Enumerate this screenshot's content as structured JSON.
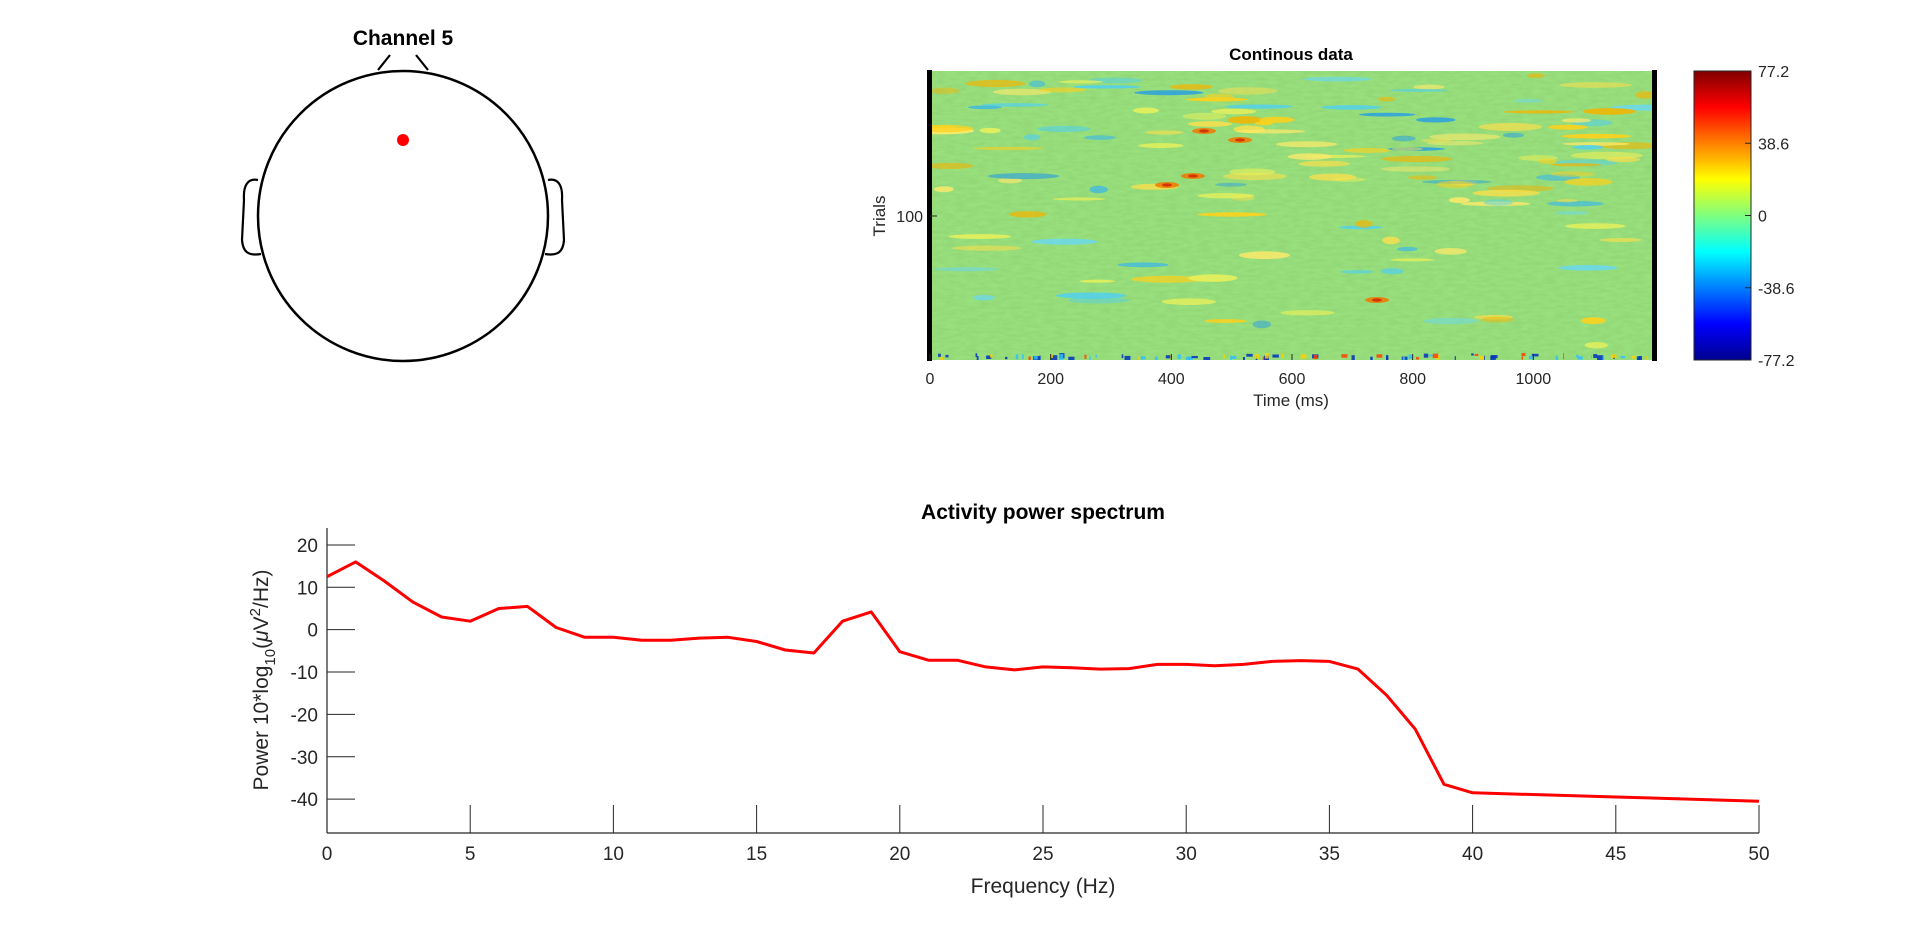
{
  "figure": {
    "background": "#ffffff"
  },
  "topoplot": {
    "title": "Channel 5",
    "electrode_color": "#ff0000",
    "head_color": "#000000"
  },
  "erpimage": {
    "title": "Continous data",
    "xlabel": "Time (ms)",
    "ylabel": "Trials",
    "x_ticks": [
      "0",
      "200",
      "400",
      "600",
      "800",
      "1000"
    ],
    "y_ticks": [
      "100"
    ],
    "colorbar": {
      "ticks": [
        "77.2",
        "38.6",
        "0",
        "-38.6",
        "-77.2"
      ],
      "max": 77.2,
      "min": -77.2,
      "colormap": "jet"
    }
  },
  "chart_data": [
    {
      "type": "line",
      "title": "Activity power spectrum",
      "xlabel": "Frequency (Hz)",
      "ylabel_parts": {
        "prefix": "Power 10*log",
        "sub": "10",
        "mid": "(",
        "mu": "μ",
        "v": "V",
        "sup": "2",
        "suffix": "/Hz)"
      },
      "xlim": [
        0,
        50
      ],
      "ylim": [
        -48,
        24
      ],
      "x_ticks": [
        "0",
        "5",
        "10",
        "15",
        "20",
        "25",
        "30",
        "35",
        "40",
        "45",
        "50"
      ],
      "y_ticks": [
        "20",
        "10",
        "0",
        "-10",
        "-20",
        "-30",
        "-40"
      ],
      "series": [
        {
          "color": "#ff0000",
          "x": [
            0,
            1,
            2,
            3,
            4,
            5,
            6,
            7,
            8,
            9,
            10,
            11,
            12,
            13,
            14,
            15,
            16,
            17,
            18,
            19,
            20,
            21,
            22,
            23,
            24,
            25,
            26,
            27,
            28,
            29,
            30,
            31,
            32,
            33,
            34,
            35,
            36,
            37,
            38,
            39,
            40,
            45,
            50
          ],
          "y": [
            12.5,
            16,
            11.5,
            6.5,
            3,
            2,
            5,
            5.5,
            0.5,
            -1.8,
            -1.8,
            -2.5,
            -2.5,
            -2,
            -1.8,
            -2.8,
            -4.8,
            -5.5,
            2,
            4.2,
            -5.2,
            -7.2,
            -7.2,
            -8.8,
            -9.5,
            -8.8,
            -9,
            -9.3,
            -9.2,
            -8.2,
            -8.2,
            -8.5,
            -8.2,
            -7.5,
            -7.3,
            -7.5,
            -9.3,
            -15.5,
            -23.5,
            -36.5,
            -38.5,
            -39.5,
            -40.5
          ]
        }
      ]
    },
    {
      "type": "heatmap",
      "title": "Continous data",
      "xlabel": "Time (ms)",
      "ylabel": "Trials",
      "xlim": [
        0,
        1200
      ],
      "zlim": [
        -77.2,
        77.2
      ]
    }
  ]
}
